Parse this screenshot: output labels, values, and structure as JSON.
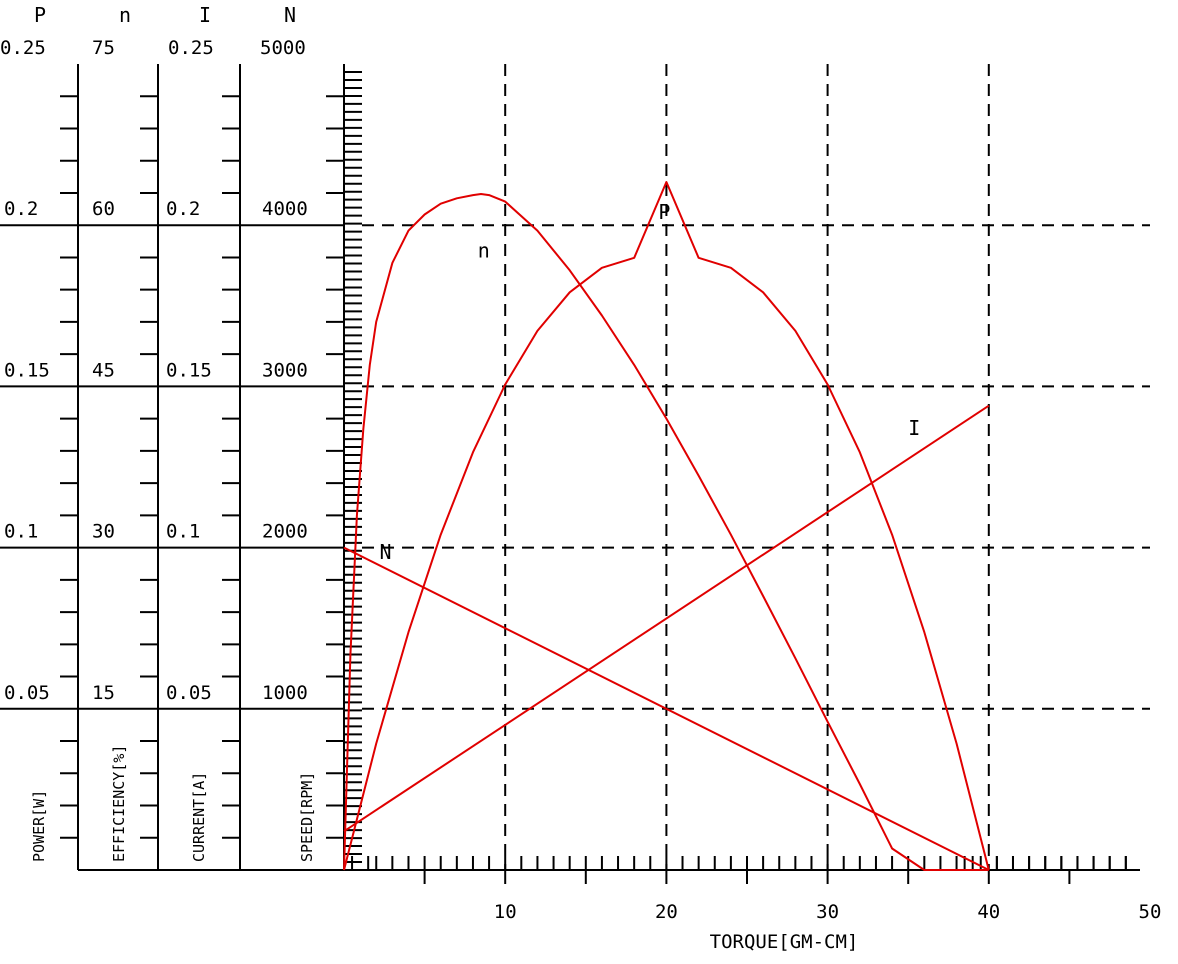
{
  "chart_data": {
    "type": "line",
    "xlabel": "TORQUE[GM-CM]",
    "x_ticks": [
      10,
      20,
      30,
      40,
      50
    ],
    "xlim": [
      0,
      50
    ],
    "axes": [
      {
        "symbol": "P",
        "name": "POWER[W]",
        "top": "0.25",
        "labels": [
          "0.2",
          "0.15",
          "0.1",
          "0.05"
        ],
        "range": [
          0,
          0.25
        ]
      },
      {
        "symbol": "n",
        "name": "EFFICIENCY[%]",
        "top": "75",
        "labels": [
          "60",
          "45",
          "30",
          "15"
        ],
        "range": [
          0,
          75
        ]
      },
      {
        "symbol": "I",
        "name": "CURRENT[A]",
        "top": "0.25",
        "labels": [
          "0.2",
          "0.15",
          "0.1",
          "0.05"
        ],
        "range": [
          0,
          0.25
        ]
      },
      {
        "symbol": "N",
        "name": "SPEED[RPM]",
        "top": "5000",
        "labels": [
          "4000",
          "3000",
          "2000",
          "1000"
        ],
        "range": [
          0,
          5000
        ]
      }
    ],
    "grid": "dashed",
    "series": [
      {
        "name": "N",
        "axis": 3,
        "color": "#e00000",
        "x": [
          0,
          40
        ],
        "y": [
          2000,
          0
        ],
        "label_at": [
          2.2,
          1930
        ]
      },
      {
        "name": "I",
        "axis": 2,
        "color": "#e00000",
        "x": [
          0,
          40
        ],
        "y": [
          0.012,
          0.144
        ],
        "label_at": [
          35,
          0.135
        ]
      },
      {
        "name": "P",
        "axis": 0,
        "color": "#e00000",
        "x": [
          0,
          2,
          4,
          6,
          8,
          10,
          12,
          14,
          16,
          18,
          20,
          22,
          24,
          26,
          28,
          30,
          32,
          34,
          36,
          38,
          40
        ],
        "y": [
          0,
          0.0392,
          0.0738,
          0.104,
          0.1296,
          0.1506,
          0.1672,
          0.1792,
          0.1868,
          0.1899,
          0.2134,
          0.1899,
          0.1868,
          0.1792,
          0.1672,
          0.1506,
          0.1296,
          0.104,
          0.0738,
          0.0392,
          0
        ],
        "label_at": [
          19.5,
          0.202
        ]
      },
      {
        "name": "n",
        "axis": 1,
        "color": "#e00000",
        "x": [
          0,
          0.4,
          0.8,
          1.2,
          1.6,
          2,
          3,
          4,
          5,
          6,
          7,
          8,
          8.5,
          9,
          10,
          12,
          14,
          16,
          18,
          20,
          22,
          24,
          26,
          28,
          30,
          32,
          34,
          36,
          38,
          40
        ],
        "y": [
          0,
          20,
          33,
          41,
          47,
          51,
          56.5,
          59.5,
          61,
          62,
          62.5,
          62.8,
          62.9,
          62.8,
          62.2,
          59.5,
          55.8,
          51.6,
          47,
          42,
          36.7,
          31.2,
          25.5,
          19.7,
          13.8,
          8,
          2,
          0,
          0,
          0
        ],
        "label_at": [
          8.3,
          57
        ]
      }
    ]
  }
}
